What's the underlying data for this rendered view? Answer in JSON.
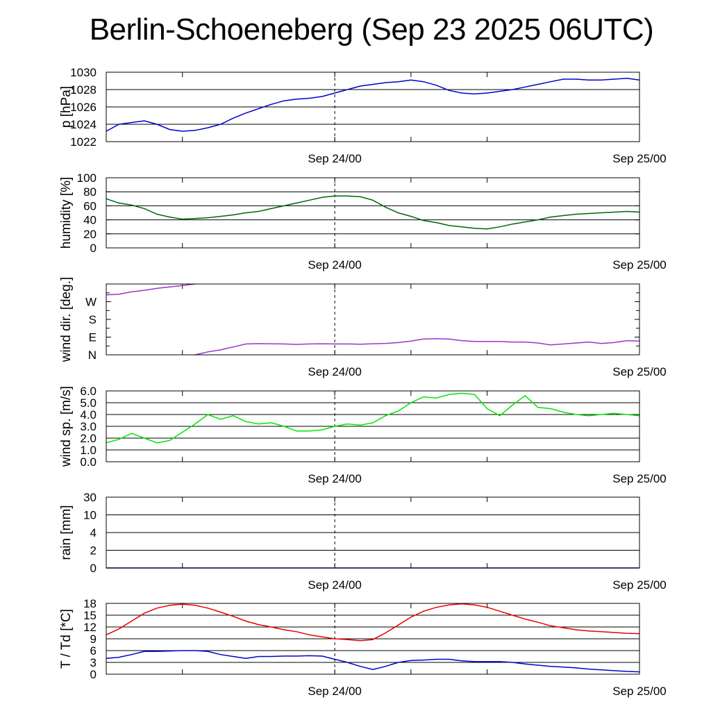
{
  "title": "Berlin-Schoeneberg (Sep 23 2025 06UTC)",
  "chart_data": [
    {
      "type": "line",
      "ylabel": "p [hPa]",
      "color": "#0000cc",
      "ylim": [
        1022,
        1030
      ],
      "yticks": [
        1022,
        1024,
        1026,
        1028,
        1030
      ],
      "ytick_labels": [
        "1022",
        "1024",
        "1026",
        "1028",
        "1030"
      ],
      "grid": true,
      "x": [
        0,
        1,
        2,
        3,
        4,
        5,
        6,
        7,
        8,
        9,
        10,
        11,
        12,
        13,
        14,
        15,
        16,
        17,
        18,
        19,
        20,
        21,
        22,
        23,
        24,
        25,
        26,
        27,
        28,
        29,
        30,
        31,
        32,
        33,
        34,
        35,
        36,
        37,
        38,
        39,
        40,
        41,
        42
      ],
      "values": [
        1023.2,
        1024.0,
        1024.2,
        1024.4,
        1024.0,
        1023.4,
        1023.2,
        1023.3,
        1023.6,
        1024.0,
        1024.7,
        1025.3,
        1025.8,
        1026.3,
        1026.7,
        1026.9,
        1027.0,
        1027.2,
        1027.6,
        1028.0,
        1028.4,
        1028.6,
        1028.8,
        1028.9,
        1029.1,
        1028.9,
        1028.5,
        1027.9,
        1027.6,
        1027.5,
        1027.6,
        1027.8,
        1028.0,
        1028.3,
        1028.6,
        1028.9,
        1029.2,
        1029.2,
        1029.1,
        1029.1,
        1029.2,
        1029.3,
        1029.1
      ]
    },
    {
      "type": "line",
      "ylabel": "humidity [%]",
      "color": "#006600",
      "ylim": [
        0,
        100
      ],
      "yticks": [
        0,
        20,
        40,
        60,
        80,
        100
      ],
      "ytick_labels": [
        "0",
        "20",
        "40",
        "60",
        "80",
        "100"
      ],
      "grid": true,
      "x": [
        0,
        1,
        2,
        3,
        4,
        5,
        6,
        7,
        8,
        9,
        10,
        11,
        12,
        13,
        14,
        15,
        16,
        17,
        18,
        19,
        20,
        21,
        22,
        23,
        24,
        25,
        26,
        27,
        28,
        29,
        30,
        31,
        32,
        33,
        34,
        35,
        36,
        37,
        38,
        39,
        40,
        41,
        42
      ],
      "values": [
        70,
        64,
        61,
        56,
        48,
        44,
        41,
        42,
        43,
        45,
        47,
        50,
        52,
        56,
        60,
        64,
        68,
        72,
        74,
        74,
        73,
        68,
        58,
        50,
        45,
        39,
        36,
        32,
        30,
        28,
        27,
        30,
        34,
        37,
        40,
        44,
        46,
        48,
        49,
        50,
        51,
        52,
        51
      ]
    },
    {
      "type": "line",
      "ylabel": "wind dir. [deg.]",
      "color": "#9933cc",
      "ylim": [
        0,
        360
      ],
      "yticks": [
        0,
        90,
        180,
        270
      ],
      "ytick_labels": [
        "N",
        "E",
        "S",
        "W"
      ],
      "grid": false,
      "x": [
        0,
        1,
        2,
        3,
        4,
        5,
        6,
        7,
        7.001,
        8,
        9,
        10,
        11,
        12,
        13,
        14,
        15,
        16,
        17,
        18,
        19,
        20,
        21,
        22,
        23,
        24,
        25,
        26,
        27,
        28,
        29,
        30,
        31,
        32,
        33,
        34,
        35,
        36,
        37,
        38,
        39,
        40,
        41,
        42
      ],
      "values": [
        305,
        308,
        320,
        328,
        338,
        345,
        352,
        360,
        0,
        15,
        25,
        40,
        55,
        57,
        56,
        55,
        53,
        55,
        56,
        55,
        55,
        54,
        56,
        58,
        62,
        70,
        80,
        82,
        80,
        72,
        68,
        68,
        68,
        65,
        65,
        60,
        50,
        55,
        60,
        65,
        58,
        62,
        72,
        70
      ]
    },
    {
      "type": "line",
      "ylabel": "wind sp. [m/s]",
      "color": "#00e600",
      "ylim": [
        0,
        6
      ],
      "yticks": [
        0,
        1,
        2,
        3,
        4,
        5,
        6
      ],
      "ytick_labels": [
        "0.0",
        "1.0",
        "2.0",
        "3.0",
        "4.0",
        "5.0",
        "6.0"
      ],
      "grid": true,
      "x": [
        0,
        1,
        2,
        3,
        4,
        5,
        6,
        7,
        8,
        9,
        10,
        11,
        12,
        13,
        14,
        15,
        16,
        17,
        18,
        19,
        20,
        21,
        22,
        23,
        24,
        25,
        26,
        27,
        28,
        29,
        30,
        31,
        32,
        33,
        34,
        35,
        36,
        37,
        38,
        39,
        40,
        41,
        42
      ],
      "values": [
        1.6,
        1.9,
        2.4,
        2.0,
        1.6,
        1.8,
        2.5,
        3.2,
        4.0,
        3.6,
        3.9,
        3.4,
        3.2,
        3.3,
        3.0,
        2.6,
        2.6,
        2.7,
        3.0,
        3.2,
        3.1,
        3.3,
        3.9,
        4.3,
        5.0,
        5.5,
        5.4,
        5.7,
        5.8,
        5.7,
        4.5,
        3.9,
        4.8,
        5.6,
        4.6,
        4.5,
        4.2,
        4.0,
        3.9,
        4.0,
        4.1,
        4.0,
        3.9
      ]
    },
    {
      "type": "line",
      "ylabel": "rain [mm]",
      "color": "#0000cc",
      "ylim": [
        0,
        4
      ],
      "yticks": [
        0,
        1,
        2,
        3,
        4
      ],
      "ytick_labels": [
        "0",
        "2",
        "4",
        "10",
        "30"
      ],
      "grid": true,
      "x": [
        0,
        42
      ],
      "values": [
        0,
        0
      ]
    },
    {
      "type": "line",
      "ylabel": "T / Td [*C]",
      "ylim": [
        0,
        18
      ],
      "yticks": [
        0,
        3,
        6,
        9,
        12,
        15,
        18
      ],
      "ytick_labels": [
        "0",
        "3",
        "6",
        "9",
        "12",
        "15",
        "18"
      ],
      "grid": true,
      "series": [
        {
          "name": "T",
          "color": "#e60000",
          "x": [
            0,
            1,
            2,
            3,
            4,
            5,
            6,
            7,
            8,
            9,
            10,
            11,
            12,
            13,
            14,
            15,
            16,
            17,
            18,
            19,
            20,
            21,
            22,
            23,
            24,
            25,
            26,
            27,
            28,
            29,
            30,
            31,
            32,
            33,
            34,
            35,
            36,
            37,
            38,
            39,
            40,
            41,
            42
          ],
          "values": [
            10.0,
            11.5,
            13.5,
            15.5,
            16.8,
            17.5,
            17.8,
            17.5,
            16.8,
            15.8,
            14.7,
            13.5,
            12.6,
            12.0,
            11.3,
            10.8,
            10.0,
            9.5,
            9.0,
            8.8,
            8.5,
            8.8,
            10.5,
            12.5,
            14.5,
            16.0,
            17.0,
            17.6,
            17.9,
            17.6,
            17.0,
            16.0,
            15.0,
            14.0,
            13.2,
            12.3,
            11.8,
            11.3,
            11.0,
            10.8,
            10.6,
            10.4,
            10.3
          ]
        },
        {
          "name": "Td",
          "color": "#0000cc",
          "x": [
            0,
            1,
            2,
            3,
            4,
            5,
            6,
            7,
            8,
            9,
            10,
            11,
            12,
            13,
            14,
            15,
            16,
            17,
            18,
            19,
            20,
            21,
            22,
            23,
            24,
            25,
            26,
            27,
            28,
            29,
            30,
            31,
            32,
            33,
            34,
            35,
            36,
            37,
            38,
            39,
            40,
            41,
            42
          ],
          "values": [
            4.0,
            4.3,
            5.0,
            5.8,
            5.8,
            5.9,
            6.0,
            6.0,
            5.8,
            5.0,
            4.5,
            4.0,
            4.5,
            4.5,
            4.6,
            4.6,
            4.7,
            4.6,
            3.8,
            3.0,
            2.0,
            1.2,
            2.0,
            3.0,
            3.5,
            3.6,
            3.8,
            3.8,
            3.4,
            3.2,
            3.2,
            3.2,
            3.0,
            2.6,
            2.3,
            2.0,
            1.8,
            1.6,
            1.3,
            1.1,
            0.9,
            0.7,
            0.6
          ]
        }
      ]
    }
  ],
  "xaxis": {
    "range_hours": [
      0,
      42
    ],
    "tick_hours": [
      0,
      6,
      18,
      24,
      30,
      42
    ],
    "label_hours": [
      18,
      42
    ],
    "labels": [
      "Sep 24/00",
      "Sep 25/00"
    ],
    "dashed_marker_hour": 18
  }
}
